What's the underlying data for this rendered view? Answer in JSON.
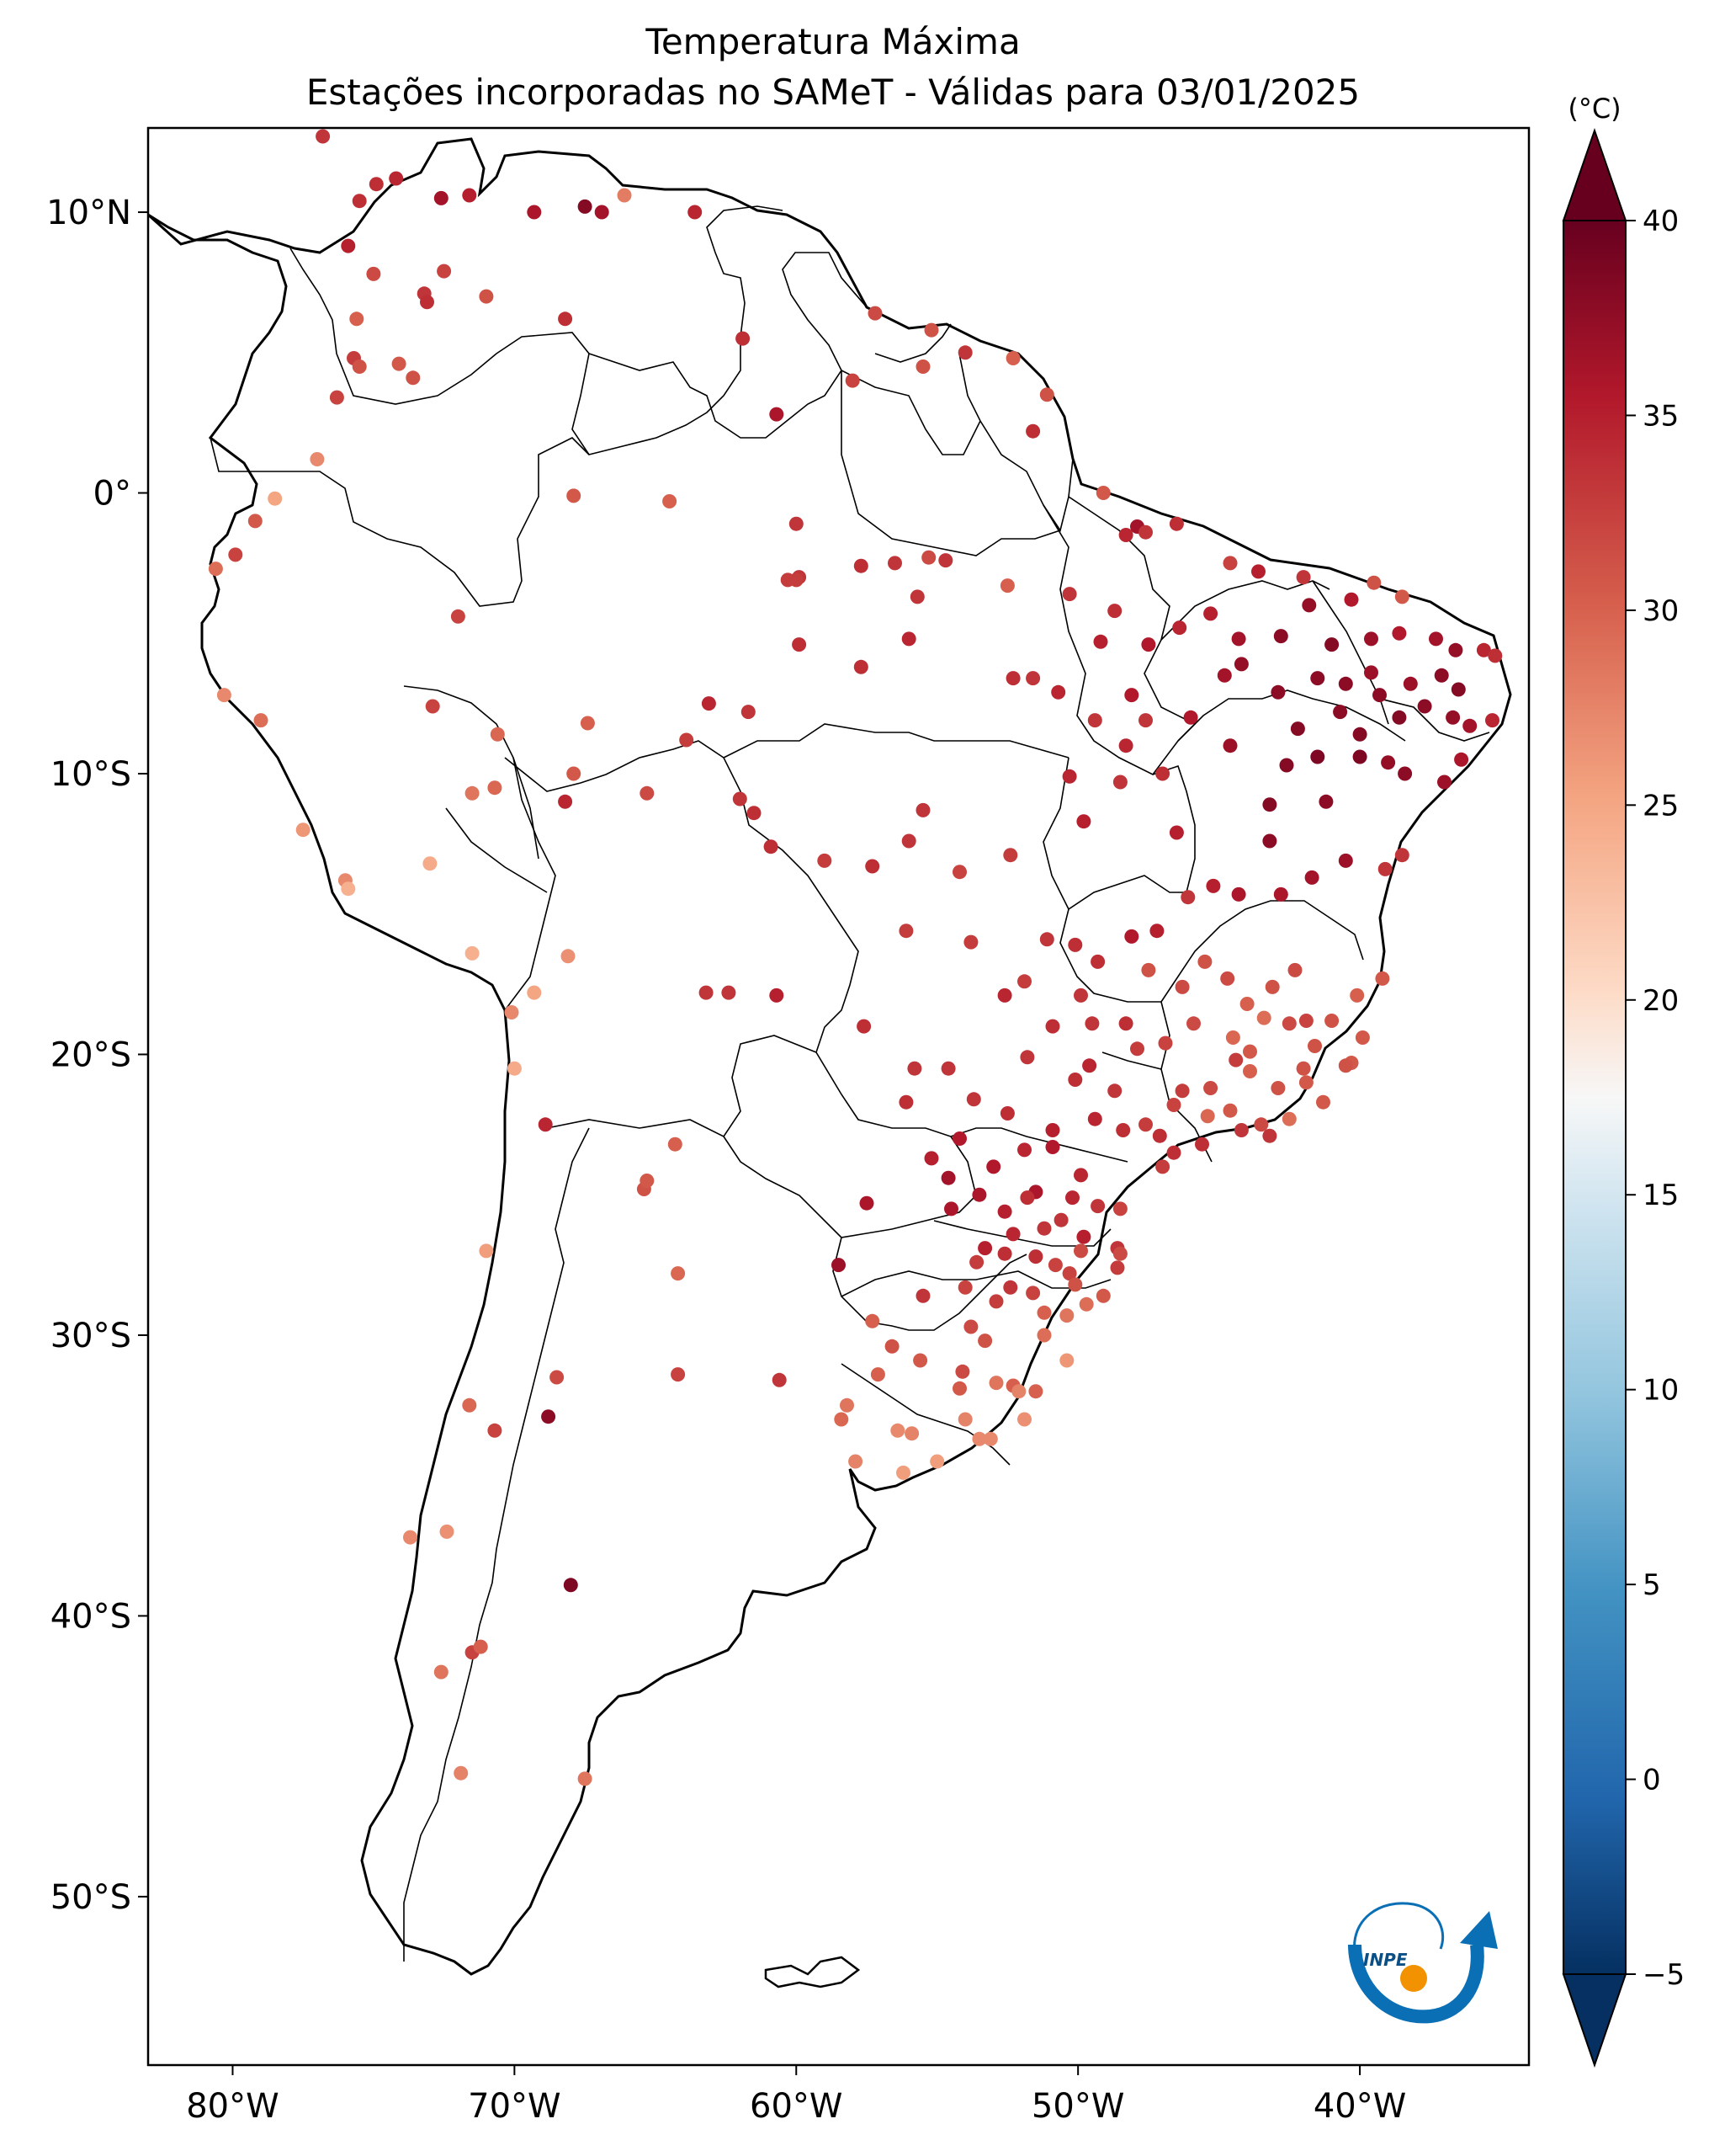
{
  "title_line1": "Temperatura Máxima",
  "title_line2": "Estações incorporadas no SAMeT - Válidas para 03/01/2025",
  "colorbar": {
    "unit_label": "(°C)",
    "ticks": [
      "40",
      "35",
      "30",
      "25",
      "20",
      "15",
      "10",
      "5",
      "0",
      "−5"
    ],
    "range": [
      -5,
      40
    ],
    "colormap": "RdBu_r",
    "extend": "both"
  },
  "lon_ticks": [
    "80°W",
    "70°W",
    "60°W",
    "50°W",
    "40°W"
  ],
  "lat_ticks": [
    "10°N",
    "0°",
    "10°S",
    "20°S",
    "30°S",
    "40°S",
    "50°S"
  ],
  "extent": {
    "lon": [
      -83,
      -34
    ],
    "lat": [
      -56,
      13
    ]
  },
  "logo_text": "INPE",
  "colors": {
    "coast": "#000000",
    "border": "#000000",
    "background": "#ffffff"
  },
  "map_data": {
    "stations": [
      [
        -76.8,
        12.7,
        33.0
      ],
      [
        -75.5,
        10.4,
        33.5
      ],
      [
        -74.9,
        11.0,
        33.5
      ],
      [
        -74.2,
        11.2,
        34.0
      ],
      [
        -72.6,
        10.5,
        36.0
      ],
      [
        -71.6,
        10.6,
        34.5
      ],
      [
        -69.3,
        10.0,
        35.5
      ],
      [
        -67.5,
        10.2,
        38.0
      ],
      [
        -66.9,
        10.0,
        36.0
      ],
      [
        -66.1,
        10.6,
        28.0
      ],
      [
        -75.9,
        8.8,
        34.5
      ],
      [
        -75.0,
        7.8,
        31.5
      ],
      [
        -73.2,
        7.1,
        33.0
      ],
      [
        -72.5,
        7.9,
        32.0
      ],
      [
        -71.0,
        7.0,
        31.0
      ],
      [
        -73.1,
        6.8,
        33.5
      ],
      [
        -75.6,
        6.2,
        30.0
      ],
      [
        -75.7,
        4.8,
        32.5
      ],
      [
        -75.5,
        4.5,
        31.0
      ],
      [
        -74.1,
        4.6,
        30.5
      ],
      [
        -73.6,
        4.1,
        31.0
      ],
      [
        -76.3,
        3.4,
        32.0
      ],
      [
        -68.2,
        6.2,
        33.5
      ],
      [
        -63.6,
        10.0,
        34.0
      ],
      [
        -61.9,
        5.5,
        33.5
      ],
      [
        -57.2,
        6.4,
        31.5
      ],
      [
        -55.2,
        5.8,
        31.0
      ],
      [
        -54.0,
        5.0,
        33.0
      ],
      [
        -58.0,
        4.0,
        32.0
      ],
      [
        -60.7,
        2.8,
        35.5
      ],
      [
        -52.3,
        4.8,
        30.0
      ],
      [
        -55.5,
        4.5,
        31.0
      ],
      [
        -51.1,
        3.5,
        31.0
      ],
      [
        -51.6,
        2.2,
        33.5
      ],
      [
        -49.1,
        0.0,
        30.5
      ],
      [
        -79.9,
        -2.2,
        32.0
      ],
      [
        -78.5,
        -0.2,
        25.0
      ],
      [
        -77.0,
        1.2,
        27.0
      ],
      [
        -79.2,
        -1.0,
        30.5
      ],
      [
        -80.6,
        -2.7,
        29.0
      ],
      [
        -67.9,
        -0.1,
        30.5
      ],
      [
        -64.5,
        -0.3,
        30.0
      ],
      [
        -60.0,
        -1.1,
        33.0
      ],
      [
        -60.3,
        -3.1,
        32.5
      ],
      [
        -59.9,
        -3.0,
        33.0
      ],
      [
        -57.7,
        -2.6,
        33.5
      ],
      [
        -56.5,
        -2.5,
        33.0
      ],
      [
        -55.3,
        -2.3,
        31.5
      ],
      [
        -54.7,
        -2.4,
        33.0
      ],
      [
        -52.5,
        -3.3,
        30.0
      ],
      [
        -50.3,
        -3.6,
        33.0
      ],
      [
        -48.3,
        -1.5,
        34.0
      ],
      [
        -47.9,
        -1.2,
        36.0
      ],
      [
        -47.6,
        -1.4,
        33.0
      ],
      [
        -46.5,
        -1.1,
        33.5
      ],
      [
        -44.6,
        -2.5,
        32.0
      ],
      [
        -43.6,
        -2.8,
        34.5
      ],
      [
        -42.0,
        -3.0,
        33.0
      ],
      [
        -39.5,
        -3.2,
        31.0
      ],
      [
        -38.5,
        -3.7,
        30.5
      ],
      [
        -41.8,
        -4.0,
        37.0
      ],
      [
        -42.8,
        -5.1,
        37.5
      ],
      [
        -40.3,
        -3.8,
        35.0
      ],
      [
        -41.0,
        -5.4,
        38.0
      ],
      [
        -39.6,
        -5.2,
        36.5
      ],
      [
        -38.6,
        -5.0,
        35.0
      ],
      [
        -37.3,
        -5.2,
        36.0
      ],
      [
        -36.6,
        -5.6,
        37.0
      ],
      [
        -35.6,
        -5.6,
        34.0
      ],
      [
        -35.2,
        -5.8,
        33.5
      ],
      [
        -44.3,
        -5.2,
        36.0
      ],
      [
        -45.3,
        -4.3,
        34.5
      ],
      [
        -46.4,
        -4.8,
        34.0
      ],
      [
        -47.5,
        -5.4,
        35.0
      ],
      [
        -48.7,
        -4.2,
        33.5
      ],
      [
        -49.2,
        -5.3,
        34.5
      ],
      [
        -48.1,
        -7.2,
        35.0
      ],
      [
        -47.6,
        -8.1,
        33.0
      ],
      [
        -48.3,
        -9.0,
        34.0
      ],
      [
        -49.4,
        -8.1,
        33.0
      ],
      [
        -50.7,
        -7.1,
        34.0
      ],
      [
        -51.6,
        -6.6,
        33.0
      ],
      [
        -52.3,
        -6.6,
        33.5
      ],
      [
        -55.7,
        -3.7,
        33.0
      ],
      [
        -56.0,
        -5.2,
        34.0
      ],
      [
        -57.7,
        -6.2,
        33.5
      ],
      [
        -59.9,
        -5.4,
        33.5
      ],
      [
        -61.7,
        -7.8,
        33.0
      ],
      [
        -63.1,
        -7.5,
        34.0
      ],
      [
        -67.4,
        -8.2,
        30.0
      ],
      [
        -70.6,
        -8.6,
        29.5
      ],
      [
        -72.9,
        -7.6,
        32.0
      ],
      [
        -70.7,
        -10.5,
        29.5
      ],
      [
        -71.5,
        -10.7,
        28.5
      ],
      [
        -68.2,
        -11.0,
        34.0
      ],
      [
        -65.3,
        -10.7,
        31.5
      ],
      [
        -63.9,
        -8.8,
        32.5
      ],
      [
        -62.0,
        -10.9,
        33.0
      ],
      [
        -60.9,
        -12.6,
        33.5
      ],
      [
        -61.5,
        -11.4,
        33.5
      ],
      [
        -56.1,
        -15.6,
        32.5
      ],
      [
        -55.5,
        -11.3,
        33.0
      ],
      [
        -57.3,
        -13.3,
        33.5
      ],
      [
        -56.0,
        -12.4,
        33.0
      ],
      [
        -59.0,
        -13.1,
        32.5
      ],
      [
        -54.2,
        -13.5,
        32.0
      ],
      [
        -53.8,
        -16.0,
        32.5
      ],
      [
        -52.4,
        -12.9,
        32.5
      ],
      [
        -50.3,
        -10.1,
        34.0
      ],
      [
        -49.8,
        -11.7,
        34.5
      ],
      [
        -48.5,
        -10.3,
        33.0
      ],
      [
        -47.0,
        -10.0,
        33.5
      ],
      [
        -46.5,
        -12.1,
        34.5
      ],
      [
        -46.0,
        -8.0,
        35.0
      ],
      [
        -44.6,
        -9.0,
        36.5
      ],
      [
        -44.2,
        -6.1,
        37.0
      ],
      [
        -44.8,
        -6.5,
        36.0
      ],
      [
        -42.9,
        -7.1,
        37.5
      ],
      [
        -42.2,
        -8.4,
        38.0
      ],
      [
        -41.5,
        -9.4,
        38.5
      ],
      [
        -40.7,
        -7.8,
        37.5
      ],
      [
        -40.0,
        -8.6,
        38.0
      ],
      [
        -39.3,
        -7.2,
        37.5
      ],
      [
        -38.6,
        -8.0,
        38.0
      ],
      [
        -37.7,
        -7.6,
        37.5
      ],
      [
        -36.7,
        -8.0,
        37.0
      ],
      [
        -36.1,
        -8.3,
        36.0
      ],
      [
        -35.3,
        -8.1,
        34.0
      ],
      [
        -36.5,
        -7.0,
        38.0
      ],
      [
        -37.1,
        -6.5,
        37.5
      ],
      [
        -38.2,
        -6.8,
        36.5
      ],
      [
        -39.6,
        -6.4,
        36.5
      ],
      [
        -40.5,
        -6.8,
        37.5
      ],
      [
        -41.5,
        -6.6,
        37.5
      ],
      [
        -42.6,
        -9.7,
        38.0
      ],
      [
        -43.2,
        -11.1,
        38.0
      ],
      [
        -43.2,
        -12.4,
        37.5
      ],
      [
        -41.2,
        -11.0,
        37.5
      ],
      [
        -40.0,
        -9.4,
        38.5
      ],
      [
        -39.0,
        -9.6,
        37.0
      ],
      [
        -38.4,
        -10.0,
        37.5
      ],
      [
        -37.0,
        -10.3,
        36.5
      ],
      [
        -36.4,
        -9.5,
        35.5
      ],
      [
        -38.5,
        -12.9,
        33.0
      ],
      [
        -39.1,
        -13.4,
        33.0
      ],
      [
        -40.5,
        -13.1,
        36.5
      ],
      [
        -41.7,
        -13.7,
        36.0
      ],
      [
        -42.8,
        -14.3,
        35.5
      ],
      [
        -44.3,
        -14.3,
        35.5
      ],
      [
        -45.2,
        -14.0,
        34.5
      ],
      [
        -46.1,
        -14.4,
        33.0
      ],
      [
        -47.2,
        -15.6,
        34.5
      ],
      [
        -48.1,
        -15.8,
        35.0
      ],
      [
        -49.3,
        -16.7,
        33.5
      ],
      [
        -50.1,
        -16.1,
        33.5
      ],
      [
        -51.1,
        -15.9,
        33.0
      ],
      [
        -51.9,
        -17.4,
        32.5
      ],
      [
        -52.6,
        -17.9,
        34.0
      ],
      [
        -50.9,
        -19.0,
        33.5
      ],
      [
        -49.5,
        -18.9,
        33.0
      ],
      [
        -48.3,
        -18.9,
        33.5
      ],
      [
        -47.9,
        -19.8,
        32.5
      ],
      [
        -46.9,
        -19.6,
        32.0
      ],
      [
        -46.3,
        -21.3,
        32.5
      ],
      [
        -45.3,
        -21.2,
        31.5
      ],
      [
        -44.4,
        -20.2,
        32.5
      ],
      [
        -43.9,
        -19.9,
        30.5
      ],
      [
        -42.5,
        -18.9,
        31.5
      ],
      [
        -41.9,
        -18.8,
        32.0
      ],
      [
        -42.0,
        -20.5,
        31.0
      ],
      [
        -40.3,
        -20.3,
        30.5
      ],
      [
        -41.3,
        -21.7,
        30.5
      ],
      [
        -42.5,
        -22.3,
        29.0
      ],
      [
        -43.2,
        -22.9,
        33.0
      ],
      [
        -44.2,
        -22.7,
        33.0
      ],
      [
        -45.6,
        -23.2,
        33.5
      ],
      [
        -46.6,
        -23.5,
        33.5
      ],
      [
        -47.1,
        -22.9,
        33.5
      ],
      [
        -48.4,
        -22.7,
        33.5
      ],
      [
        -49.4,
        -22.3,
        34.0
      ],
      [
        -50.9,
        -22.7,
        34.5
      ],
      [
        -52.5,
        -22.1,
        33.5
      ],
      [
        -53.7,
        -21.6,
        33.0
      ],
      [
        -54.6,
        -20.5,
        33.0
      ],
      [
        -55.8,
        -20.5,
        33.0
      ],
      [
        -57.6,
        -19.0,
        33.5
      ],
      [
        -56.1,
        -21.7,
        33.5
      ],
      [
        -54.2,
        -23.0,
        35.0
      ],
      [
        -53.0,
        -24.0,
        35.0
      ],
      [
        -51.5,
        -24.9,
        35.5
      ],
      [
        -50.2,
        -25.1,
        34.0
      ],
      [
        -49.3,
        -25.4,
        33.0
      ],
      [
        -48.5,
        -25.5,
        32.0
      ],
      [
        -52.6,
        -25.6,
        34.5
      ],
      [
        -53.5,
        -25.0,
        35.5
      ],
      [
        -54.5,
        -25.5,
        35.5
      ],
      [
        -54.6,
        -24.4,
        36.0
      ],
      [
        -55.2,
        -23.7,
        34.5
      ],
      [
        -51.9,
        -23.4,
        34.0
      ],
      [
        -50.9,
        -23.3,
        35.0
      ],
      [
        -49.9,
        -24.3,
        34.0
      ],
      [
        -51.2,
        -26.2,
        33.0
      ],
      [
        -49.8,
        -26.5,
        34.5
      ],
      [
        -48.6,
        -26.9,
        33.0
      ],
      [
        -48.6,
        -27.6,
        32.5
      ],
      [
        -49.1,
        -28.6,
        30.5
      ],
      [
        -50.3,
        -27.8,
        32.0
      ],
      [
        -51.5,
        -27.2,
        33.5
      ],
      [
        -52.6,
        -27.1,
        33.5
      ],
      [
        -53.6,
        -27.4,
        32.5
      ],
      [
        -54.0,
        -28.3,
        32.0
      ],
      [
        -55.5,
        -28.6,
        33.0
      ],
      [
        -57.3,
        -29.5,
        30.0
      ],
      [
        -56.6,
        -30.4,
        31.0
      ],
      [
        -55.6,
        -30.9,
        30.5
      ],
      [
        -54.1,
        -31.3,
        31.5
      ],
      [
        -52.3,
        -31.8,
        30.0
      ],
      [
        -51.2,
        -30.0,
        29.0
      ],
      [
        -50.4,
        -29.3,
        28.5
      ],
      [
        -49.7,
        -28.9,
        29.0
      ],
      [
        -53.8,
        -29.7,
        31.5
      ],
      [
        -52.4,
        -28.3,
        33.0
      ],
      [
        -51.2,
        -29.2,
        30.0
      ],
      [
        -53.5,
        -33.7,
        27.0
      ],
      [
        -54.0,
        -33.0,
        27.5
      ],
      [
        -55.9,
        -33.5,
        27.5
      ],
      [
        -56.2,
        -34.9,
        25.5
      ],
      [
        -57.9,
        -34.5,
        27.5
      ],
      [
        -58.4,
        -33.0,
        29.5
      ],
      [
        -57.1,
        -31.4,
        30.0
      ],
      [
        -54.2,
        -31.9,
        30.5
      ],
      [
        -58.2,
        -32.5,
        28.5
      ],
      [
        -57.5,
        -25.3,
        35.5
      ],
      [
        -58.5,
        -27.5,
        36.5
      ],
      [
        -60.6,
        -31.6,
        33.0
      ],
      [
        -64.2,
        -31.4,
        32.0
      ],
      [
        -68.8,
        -32.9,
        37.5
      ],
      [
        -68.5,
        -31.5,
        31.5
      ],
      [
        -70.7,
        -33.4,
        32.0
      ],
      [
        -71.6,
        -32.5,
        29.5
      ],
      [
        -65.4,
        -24.8,
        31.0
      ],
      [
        -64.2,
        -27.8,
        29.5
      ],
      [
        -64.3,
        -23.2,
        30.0
      ],
      [
        -65.3,
        -24.5,
        30.5
      ],
      [
        -62.4,
        -17.8,
        33.0
      ],
      [
        -60.7,
        -17.9,
        34.5
      ],
      [
        -63.2,
        -17.8,
        33.0
      ],
      [
        -68.1,
        -16.5,
        26.5
      ],
      [
        -70.1,
        -18.5,
        27.0
      ],
      [
        -70.0,
        -20.5,
        24.5
      ],
      [
        -69.3,
        -17.8,
        25.0
      ],
      [
        -68.9,
        -22.5,
        34.0
      ],
      [
        -71.0,
        -27.0,
        25.5
      ],
      [
        -72.4,
        -37.0,
        26.5
      ],
      [
        -71.5,
        -41.3,
        32.0
      ],
      [
        -71.2,
        -41.1,
        30.0
      ],
      [
        -72.6,
        -42.0,
        28.5
      ],
      [
        -68.0,
        -38.9,
        38.5
      ],
      [
        -67.5,
        -45.8,
        28.5
      ],
      [
        -71.9,
        -45.6,
        27.5
      ],
      [
        -73.7,
        -37.2,
        27.0
      ],
      [
        -80.3,
        -7.2,
        27.0
      ],
      [
        -79.0,
        -8.1,
        29.0
      ],
      [
        -77.5,
        -12.0,
        26.0
      ],
      [
        -76.0,
        -13.8,
        27.0
      ],
      [
        -75.9,
        -14.1,
        24.0
      ],
      [
        -73.0,
        -13.2,
        24.5
      ],
      [
        -71.5,
        -16.4,
        24.0
      ],
      [
        -72.0,
        -4.4,
        32.0
      ],
      [
        -67.9,
        -10.0,
        30.5
      ],
      [
        -60.0,
        -3.1,
        32.5
      ],
      [
        -48.5,
        -27.1,
        31.5
      ],
      [
        -51.5,
        -32.0,
        30.0
      ],
      [
        -52.1,
        -32.0,
        27.5
      ],
      [
        -53.1,
        -33.7,
        27.0
      ],
      [
        -51.9,
        -33.0,
        26.5
      ],
      [
        -52.9,
        -31.7,
        28.5
      ],
      [
        -50.4,
        -30.9,
        26.0
      ],
      [
        -55.0,
        -34.5,
        25.5
      ],
      [
        -56.4,
        -33.4,
        27.0
      ],
      [
        -40.5,
        -20.4,
        31.0
      ],
      [
        -39.9,
        -19.4,
        30.5
      ],
      [
        -39.2,
        -17.3,
        30.5
      ],
      [
        -40.1,
        -17.9,
        30.0
      ],
      [
        -41.0,
        -18.8,
        31.0
      ],
      [
        -42.3,
        -17.0,
        31.5
      ],
      [
        -43.1,
        -17.6,
        31.0
      ],
      [
        -44.0,
        -18.2,
        30.0
      ],
      [
        -43.4,
        -18.7,
        29.0
      ],
      [
        -44.7,
        -17.3,
        31.5
      ],
      [
        -45.5,
        -16.7,
        31.0
      ],
      [
        -46.3,
        -17.6,
        31.5
      ],
      [
        -47.5,
        -17.0,
        31.0
      ],
      [
        -45.9,
        -18.9,
        31.5
      ],
      [
        -44.5,
        -19.4,
        29.5
      ],
      [
        -43.9,
        -20.6,
        30.0
      ],
      [
        -45.4,
        -22.2,
        29.5
      ],
      [
        -44.6,
        -22.0,
        30.5
      ],
      [
        -43.5,
        -22.5,
        31.5
      ],
      [
        -42.9,
        -21.2,
        31.0
      ],
      [
        -41.9,
        -21.0,
        30.5
      ],
      [
        -41.6,
        -19.7,
        31.0
      ],
      [
        -46.6,
        -21.8,
        32.0
      ],
      [
        -47.6,
        -22.5,
        32.5
      ],
      [
        -48.7,
        -21.3,
        33.0
      ],
      [
        -50.1,
        -20.9,
        33.5
      ],
      [
        -51.8,
        -20.1,
        33.0
      ],
      [
        -49.9,
        -17.9,
        33.0
      ],
      [
        -49.6,
        -20.4,
        34.0
      ],
      [
        -47.0,
        -24.0,
        32.5
      ],
      [
        -52.3,
        -26.4,
        34.0
      ],
      [
        -53.3,
        -26.9,
        34.5
      ],
      [
        -51.8,
        -25.1,
        33.5
      ],
      [
        -50.6,
        -25.9,
        33.0
      ],
      [
        -49.9,
        -27.0,
        31.5
      ],
      [
        -50.8,
        -27.5,
        32.0
      ],
      [
        -50.1,
        -28.2,
        31.0
      ],
      [
        -51.6,
        -28.5,
        32.0
      ],
      [
        -52.9,
        -28.8,
        32.5
      ],
      [
        -53.3,
        -30.2,
        31.0
      ]
    ]
  }
}
